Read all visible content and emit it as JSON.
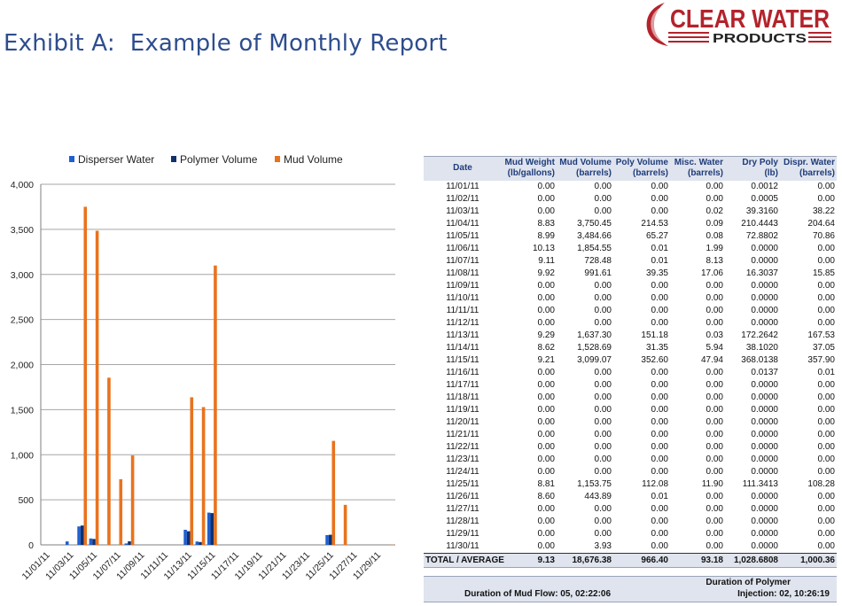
{
  "header": {
    "title": "Exhibit A:  Example of Monthly Report",
    "logo_line1": "CLEAR WATER",
    "logo_line2": "PRODUCTS"
  },
  "colors": {
    "disperser": "#1f5fd0",
    "polymer": "#10306e",
    "mud": "#e8731e",
    "title": "#2e4d8e",
    "logo_red": "#b3232b",
    "header_fill": "#dfe4ee"
  },
  "chart_data": {
    "type": "bar",
    "legend_position": "top",
    "grid": true,
    "ylim": [
      0,
      4000
    ],
    "yticks": [
      0,
      500,
      1000,
      1500,
      2000,
      2500,
      3000,
      3500,
      4000
    ],
    "ytick_labels": [
      "0",
      "500",
      "1,000",
      "1,500",
      "2,000",
      "2,500",
      "3,000",
      "3,500",
      "4,000"
    ],
    "categories": [
      "11/01/11",
      "11/02/11",
      "11/03/11",
      "11/04/11",
      "11/05/11",
      "11/06/11",
      "11/07/11",
      "11/08/11",
      "11/09/11",
      "11/10/11",
      "11/11/11",
      "11/12/11",
      "11/13/11",
      "11/14/11",
      "11/15/11",
      "11/16/11",
      "11/17/11",
      "11/18/11",
      "11/19/11",
      "11/20/11",
      "11/21/11",
      "11/22/11",
      "11/23/11",
      "11/24/11",
      "11/25/11",
      "11/26/11",
      "11/27/11",
      "11/28/11",
      "11/29/11",
      "11/30/11"
    ],
    "xtick_labels": [
      "11/01/11",
      "11/03/11",
      "11/05/11",
      "11/07/11",
      "11/09/11",
      "11/11/11",
      "11/13/11",
      "11/15/11",
      "11/17/11",
      "11/19/11",
      "11/21/11",
      "11/23/11",
      "11/25/11",
      "11/27/11",
      "11/29/11"
    ],
    "series": [
      {
        "name": "Disperser Water",
        "color": "#1f5fd0",
        "values": [
          0,
          0,
          38.22,
          204.64,
          70.86,
          0,
          0,
          15.85,
          0,
          0,
          0,
          0,
          167.53,
          37.05,
          357.9,
          0.01,
          0,
          0,
          0,
          0,
          0,
          0,
          0,
          0,
          108.28,
          0,
          0,
          0,
          0,
          0
        ]
      },
      {
        "name": "Polymer Volume",
        "color": "#10306e",
        "values": [
          0,
          0,
          0,
          214.53,
          65.27,
          0.01,
          0.01,
          39.35,
          0,
          0,
          0,
          0,
          151.18,
          31.35,
          352.6,
          0,
          0,
          0,
          0,
          0,
          0,
          0,
          0,
          0,
          112.08,
          0.01,
          0,
          0,
          0,
          0
        ]
      },
      {
        "name": "Mud Volume",
        "color": "#e8731e",
        "values": [
          0,
          0,
          0,
          3750.45,
          3484.66,
          1854.55,
          728.48,
          991.61,
          0,
          0,
          0,
          0,
          1637.3,
          1528.69,
          3099.07,
          0,
          0,
          0,
          0,
          0,
          0,
          0,
          0,
          0,
          1153.75,
          443.89,
          0,
          0,
          0,
          3.93
        ]
      }
    ]
  },
  "table": {
    "headers": [
      {
        "line1": "Date",
        "line2": ""
      },
      {
        "line1": "Mud Weight",
        "line2": "(lb/gallons)"
      },
      {
        "line1": "Mud Volume",
        "line2": "(barrels)"
      },
      {
        "line1": "Poly Volume",
        "line2": "(barrels)"
      },
      {
        "line1": "Misc. Water",
        "line2": "(barrels)"
      },
      {
        "line1": "Dry Poly",
        "line2": "(lb)"
      },
      {
        "line1": "Dispr. Water",
        "line2": "(barrels)"
      }
    ],
    "rows": [
      [
        "11/01/11",
        "0.00",
        "0.00",
        "0.00",
        "0.00",
        "0.0012",
        "0.00"
      ],
      [
        "11/02/11",
        "0.00",
        "0.00",
        "0.00",
        "0.00",
        "0.0005",
        "0.00"
      ],
      [
        "11/03/11",
        "0.00",
        "0.00",
        "0.00",
        "0.02",
        "39.3160",
        "38.22"
      ],
      [
        "11/04/11",
        "8.83",
        "3,750.45",
        "214.53",
        "0.09",
        "210.4443",
        "204.64"
      ],
      [
        "11/05/11",
        "8.99",
        "3,484.66",
        "65.27",
        "0.08",
        "72.8802",
        "70.86"
      ],
      [
        "11/06/11",
        "10.13",
        "1,854.55",
        "0.01",
        "1.99",
        "0.0000",
        "0.00"
      ],
      [
        "11/07/11",
        "9.11",
        "728.48",
        "0.01",
        "8.13",
        "0.0000",
        "0.00"
      ],
      [
        "11/08/11",
        "9.92",
        "991.61",
        "39.35",
        "17.06",
        "16.3037",
        "15.85"
      ],
      [
        "11/09/11",
        "0.00",
        "0.00",
        "0.00",
        "0.00",
        "0.0000",
        "0.00"
      ],
      [
        "11/10/11",
        "0.00",
        "0.00",
        "0.00",
        "0.00",
        "0.0000",
        "0.00"
      ],
      [
        "11/11/11",
        "0.00",
        "0.00",
        "0.00",
        "0.00",
        "0.0000",
        "0.00"
      ],
      [
        "11/12/11",
        "0.00",
        "0.00",
        "0.00",
        "0.00",
        "0.0000",
        "0.00"
      ],
      [
        "11/13/11",
        "9.29",
        "1,637.30",
        "151.18",
        "0.03",
        "172.2642",
        "167.53"
      ],
      [
        "11/14/11",
        "8.62",
        "1,528.69",
        "31.35",
        "5.94",
        "38.1020",
        "37.05"
      ],
      [
        "11/15/11",
        "9.21",
        "3,099.07",
        "352.60",
        "47.94",
        "368.0138",
        "357.90"
      ],
      [
        "11/16/11",
        "0.00",
        "0.00",
        "0.00",
        "0.00",
        "0.0137",
        "0.01"
      ],
      [
        "11/17/11",
        "0.00",
        "0.00",
        "0.00",
        "0.00",
        "0.0000",
        "0.00"
      ],
      [
        "11/18/11",
        "0.00",
        "0.00",
        "0.00",
        "0.00",
        "0.0000",
        "0.00"
      ],
      [
        "11/19/11",
        "0.00",
        "0.00",
        "0.00",
        "0.00",
        "0.0000",
        "0.00"
      ],
      [
        "11/20/11",
        "0.00",
        "0.00",
        "0.00",
        "0.00",
        "0.0000",
        "0.00"
      ],
      [
        "11/21/11",
        "0.00",
        "0.00",
        "0.00",
        "0.00",
        "0.0000",
        "0.00"
      ],
      [
        "11/22/11",
        "0.00",
        "0.00",
        "0.00",
        "0.00",
        "0.0000",
        "0.00"
      ],
      [
        "11/23/11",
        "0.00",
        "0.00",
        "0.00",
        "0.00",
        "0.0000",
        "0.00"
      ],
      [
        "11/24/11",
        "0.00",
        "0.00",
        "0.00",
        "0.00",
        "0.0000",
        "0.00"
      ],
      [
        "11/25/11",
        "8.81",
        "1,153.75",
        "112.08",
        "11.90",
        "111.3413",
        "108.28"
      ],
      [
        "11/26/11",
        "8.60",
        "443.89",
        "0.01",
        "0.00",
        "0.0000",
        "0.00"
      ],
      [
        "11/27/11",
        "0.00",
        "0.00",
        "0.00",
        "0.00",
        "0.0000",
        "0.00"
      ],
      [
        "11/28/11",
        "0.00",
        "0.00",
        "0.00",
        "0.00",
        "0.0000",
        "0.00"
      ],
      [
        "11/29/11",
        "0.00",
        "0.00",
        "0.00",
        "0.00",
        "0.0000",
        "0.00"
      ],
      [
        "11/30/11",
        "0.00",
        "3.93",
        "0.00",
        "0.00",
        "0.0000",
        "0.00"
      ]
    ],
    "total": [
      "TOTAL / AVERAGE",
      "9.13",
      "18,676.38",
      "966.40",
      "93.18",
      "1,028.6808",
      "1,000.36"
    ]
  },
  "duration": {
    "mud_flow": "Duration of Mud Flow: 05, 02:22:06",
    "polymer_heading": "Duration of Polymer",
    "polymer_injection": "Injection: 02, 10:26:19"
  }
}
